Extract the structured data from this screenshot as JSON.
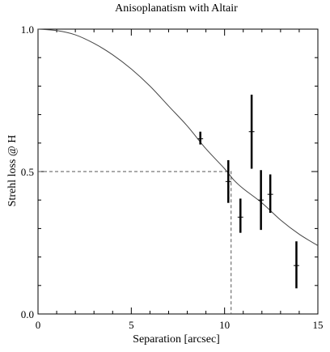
{
  "chart_data": {
    "type": "scatter",
    "title": "Anisoplanatism with Altair",
    "xlabel": "Separation [arcsec]",
    "ylabel": "Strehl loss @ H",
    "xlim": [
      0,
      15
    ],
    "ylim": [
      0,
      1
    ],
    "x_ticks": [
      0,
      5,
      10,
      15
    ],
    "x_tick_labels": [
      "0",
      "5",
      "10",
      "15"
    ],
    "y_ticks": [
      0,
      0.5,
      1
    ],
    "y_tick_labels": [
      "0.0",
      "0.5",
      "1.0"
    ],
    "grid": false,
    "legend": "none",
    "model_curve": {
      "x": [
        0,
        1,
        2,
        3,
        4,
        5,
        6,
        7,
        8,
        9,
        10,
        10.5,
        11,
        12,
        13,
        14,
        15
      ],
      "y": [
        1.0,
        0.995,
        0.98,
        0.95,
        0.91,
        0.86,
        0.8,
        0.73,
        0.66,
        0.58,
        0.51,
        0.47,
        0.44,
        0.39,
        0.33,
        0.28,
        0.24
      ]
    },
    "measurements": [
      {
        "x": 8.7,
        "y": 0.615,
        "yerr_low": 0.595,
        "yerr_high": 0.64,
        "xerr_low": 8.55,
        "xerr_high": 8.85
      },
      {
        "x": 10.2,
        "y": 0.465,
        "yerr_low": 0.39,
        "yerr_high": 0.54,
        "xerr_low": 10.05,
        "xerr_high": 10.35
      },
      {
        "x": 10.85,
        "y": 0.34,
        "yerr_low": 0.285,
        "yerr_high": 0.405,
        "xerr_low": 10.7,
        "xerr_high": 11.0
      },
      {
        "x": 11.45,
        "y": 0.64,
        "yerr_low": 0.51,
        "yerr_high": 0.77,
        "xerr_low": 11.3,
        "xerr_high": 11.6
      },
      {
        "x": 11.95,
        "y": 0.4,
        "yerr_low": 0.295,
        "yerr_high": 0.505,
        "xerr_low": 11.8,
        "xerr_high": 12.1
      },
      {
        "x": 12.45,
        "y": 0.42,
        "yerr_low": 0.355,
        "yerr_high": 0.49,
        "xerr_low": 12.3,
        "xerr_high": 12.6
      },
      {
        "x": 13.85,
        "y": 0.17,
        "yerr_low": 0.09,
        "yerr_high": 0.255,
        "xerr_low": 13.7,
        "xerr_high": 14.0
      }
    ],
    "reference_line": {
      "x": 10.35,
      "y": 0.5
    }
  },
  "colors": {
    "axis": "#000000",
    "curve": "#444444",
    "points": "#000000",
    "reference": "#555555"
  }
}
